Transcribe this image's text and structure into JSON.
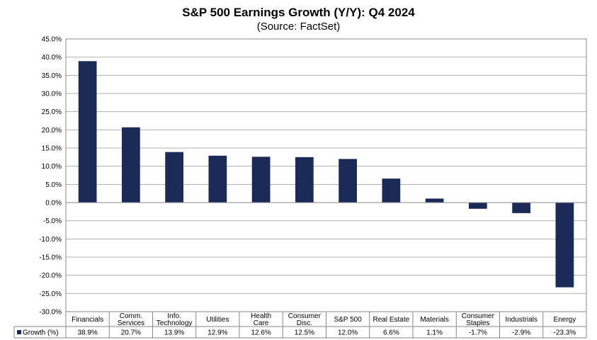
{
  "chart_data": {
    "type": "bar",
    "title": "S&P 500 Earnings Growth (Y/Y): Q4 2024",
    "subtitle": "(Source: FactSet)",
    "categories": [
      [
        "Financials"
      ],
      [
        "Comm.",
        "Services"
      ],
      [
        "Info.",
        "Technology"
      ],
      [
        "Utilities"
      ],
      [
        "Health",
        "Care"
      ],
      [
        "Consumer",
        "Disc."
      ],
      [
        "S&P 500"
      ],
      [
        "Real Estate"
      ],
      [
        "Materials"
      ],
      [
        "Consumer",
        "Staples"
      ],
      [
        "Industrials"
      ],
      [
        "Energy"
      ]
    ],
    "series": [
      {
        "name": "Growth (%)",
        "values": [
          38.9,
          20.7,
          13.9,
          12.9,
          12.6,
          12.5,
          12.0,
          6.6,
          1.1,
          -1.7,
          -2.9,
          -23.3
        ],
        "labels": [
          "38.9%",
          "20.7%",
          "13.9%",
          "12.9%",
          "12.6%",
          "12.5%",
          "12.0%",
          "6.6%",
          "1.1%",
          "-1.7%",
          "-2.9%",
          "-23.3%"
        ],
        "color": "#1b2a57"
      }
    ],
    "ylim": [
      -30,
      45
    ],
    "ytick_step": 5,
    "ytick_labels": [
      "45.0%",
      "40.0%",
      "35.0%",
      "30.0%",
      "25.0%",
      "20.0%",
      "15.0%",
      "10.0%",
      "5.0%",
      "0.0%",
      "-5.0%",
      "-10.0%",
      "-15.0%",
      "-20.0%",
      "-25.0%",
      "-30.0%"
    ],
    "grid": true,
    "legend": "data-table-left",
    "gridline_color": "#b0b0b0"
  }
}
